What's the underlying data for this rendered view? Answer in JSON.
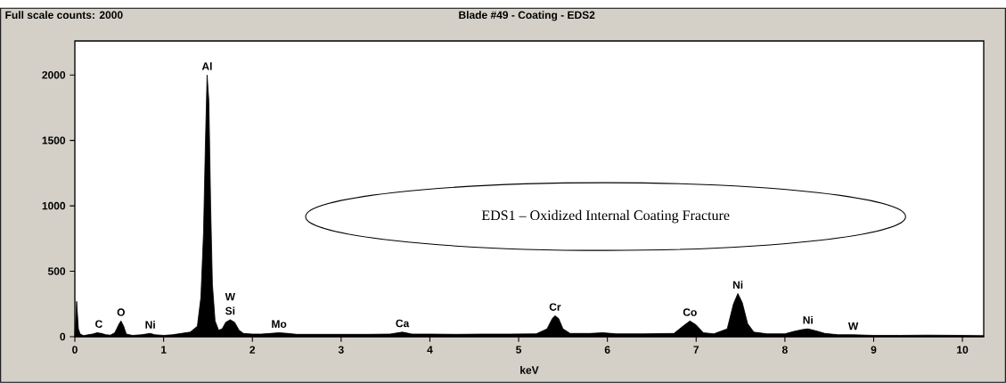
{
  "chart_data": {
    "type": "area",
    "title": "Blade #49 - Coating - EDS2",
    "subtitle": "Full scale counts: 2000",
    "xlabel": "keV",
    "xlim": [
      0,
      10.24
    ],
    "ylim": [
      0,
      2260
    ],
    "xticks": [
      0,
      1,
      2,
      3,
      4,
      5,
      6,
      7,
      8,
      9,
      10
    ],
    "yticks": [
      0,
      500,
      1000,
      1500,
      2000
    ],
    "marker": "none",
    "x": [
      0.0,
      0.02,
      0.04,
      0.06,
      0.1,
      0.15,
      0.2,
      0.25,
      0.3,
      0.35,
      0.4,
      0.45,
      0.5,
      0.52,
      0.55,
      0.58,
      0.65,
      0.75,
      0.85,
      0.9,
      1.0,
      1.1,
      1.2,
      1.3,
      1.38,
      1.42,
      1.45,
      1.47,
      1.49,
      1.51,
      1.53,
      1.55,
      1.58,
      1.62,
      1.66,
      1.7,
      1.75,
      1.8,
      1.85,
      1.9,
      2.0,
      2.1,
      2.2,
      2.3,
      2.4,
      2.5,
      2.7,
      3.0,
      3.3,
      3.55,
      3.69,
      3.8,
      4.0,
      4.3,
      4.6,
      4.9,
      5.2,
      5.32,
      5.38,
      5.41,
      5.45,
      5.5,
      5.58,
      5.8,
      5.95,
      6.1,
      6.4,
      6.75,
      6.85,
      6.93,
      7.0,
      7.08,
      7.2,
      7.35,
      7.42,
      7.47,
      7.52,
      7.58,
      7.65,
      7.8,
      8.0,
      8.1,
      8.2,
      8.26,
      8.35,
      8.45,
      8.6,
      8.77,
      9.0,
      9.3,
      9.6,
      10.0,
      10.24
    ],
    "series": [
      {
        "color": "#000000",
        "values": [
          0,
          270,
          60,
          20,
          8,
          15,
          20,
          30,
          25,
          15,
          12,
          30,
          100,
          120,
          80,
          20,
          10,
          15,
          25,
          15,
          10,
          15,
          25,
          35,
          80,
          300,
          800,
          1450,
          2000,
          1800,
          1000,
          400,
          120,
          50,
          60,
          110,
          130,
          110,
          50,
          25,
          20,
          20,
          25,
          30,
          25,
          18,
          18,
          18,
          18,
          20,
          35,
          20,
          20,
          18,
          20,
          20,
          22,
          60,
          140,
          160,
          140,
          60,
          25,
          25,
          30,
          22,
          22,
          25,
          80,
          120,
          90,
          30,
          22,
          60,
          250,
          330,
          260,
          100,
          35,
          22,
          22,
          40,
          55,
          60,
          45,
          25,
          15,
          15,
          10,
          10,
          12,
          10,
          8
        ]
      }
    ],
    "annotations": [
      {
        "text": "C",
        "x": 0.27,
        "y": 30
      },
      {
        "text": "O",
        "x": 0.52,
        "y": 120
      },
      {
        "text": "Ni",
        "x": 0.85,
        "y": 25
      },
      {
        "text": "Al",
        "x": 1.49,
        "y": 2000
      },
      {
        "text": "Si",
        "x": 1.75,
        "y": 130
      },
      {
        "text": "W",
        "x": 1.75,
        "y": 130
      },
      {
        "text": "Mo",
        "x": 2.3,
        "y": 30
      },
      {
        "text": "Ca",
        "x": 3.69,
        "y": 35
      },
      {
        "text": "Cr",
        "x": 5.41,
        "y": 160
      },
      {
        "text": "Co",
        "x": 6.93,
        "y": 120
      },
      {
        "text": "Ni",
        "x": 7.47,
        "y": 330
      },
      {
        "text": "Ni",
        "x": 8.26,
        "y": 60
      },
      {
        "text": "W",
        "x": 8.77,
        "y": 15
      },
      "EDS1 – Oxidized Internal Coating Fracture"
    ]
  }
}
